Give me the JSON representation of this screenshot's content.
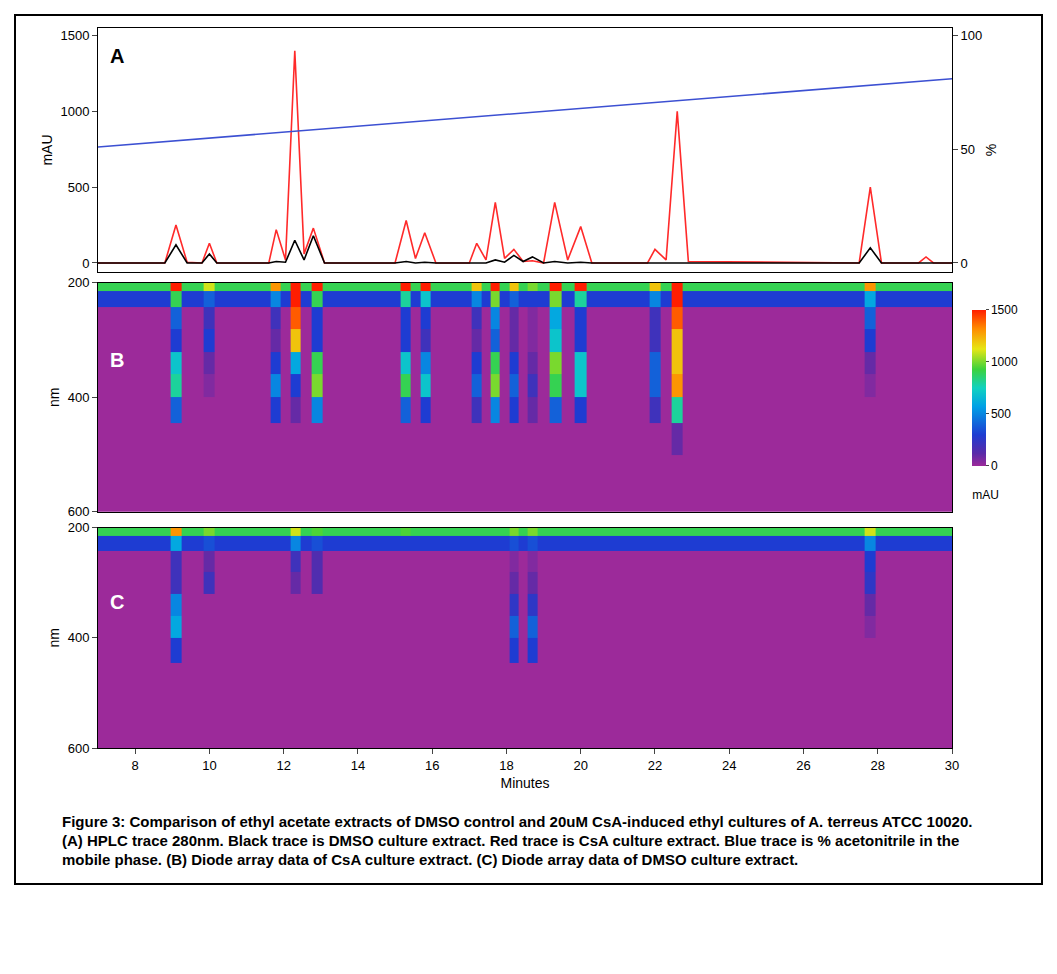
{
  "caption": "Figure 3: Comparison of ethyl acetate extracts of DMSO control and 20uM CsA-induced ethyl cultures of A. terreus ATCC 10020. (A) HPLC trace 280nm. Black trace is DMSO culture extract. Red trace is CsA culture extract. Blue trace is % acetonitrile in the mobile phase. (B) Diode array data of CsA culture extract. (C) Diode array data of DMSO culture extract.",
  "chart_data": [
    {
      "type": "line",
      "title": "A",
      "ylabel": "mAU",
      "y2label": "%",
      "xlim": [
        7,
        30
      ],
      "ylim": [
        -60,
        1550
      ],
      "yticks": [
        0,
        500,
        1000,
        1500
      ],
      "y2lim": [
        -4,
        103.3
      ],
      "y2ticks": [
        0,
        50,
        100
      ],
      "tick_labels": "y",
      "x": [
        7,
        8.8,
        9.1,
        9.4,
        9.8,
        10.0,
        10.2,
        11.6,
        11.8,
        12.05,
        12.3,
        12.55,
        12.8,
        13.1,
        15.0,
        15.3,
        15.55,
        15.8,
        16.1,
        17.0,
        17.2,
        17.45,
        17.7,
        17.95,
        18.2,
        18.45,
        18.7,
        19.0,
        19.3,
        19.65,
        20.0,
        20.3,
        21.8,
        22.0,
        22.3,
        22.6,
        22.9,
        27.5,
        27.8,
        28.1,
        29.1,
        29.3,
        29.5,
        30
      ],
      "series": [
        {
          "color": "#ff2a2a",
          "values": [
            0,
            0,
            250,
            5,
            0,
            130,
            0,
            0,
            220,
            20,
            1400,
            60,
            230,
            0,
            0,
            280,
            30,
            200,
            0,
            0,
            130,
            20,
            400,
            30,
            90,
            10,
            15,
            0,
            400,
            20,
            240,
            0,
            0,
            90,
            20,
            1000,
            10,
            0,
            500,
            0,
            0,
            40,
            0,
            0
          ]
        },
        {
          "color": "#000000",
          "values": [
            0,
            0,
            120,
            0,
            0,
            60,
            0,
            0,
            10,
            5,
            150,
            20,
            180,
            0,
            0,
            10,
            0,
            5,
            0,
            0,
            5,
            0,
            20,
            5,
            50,
            10,
            40,
            0,
            10,
            0,
            5,
            0,
            0,
            0,
            0,
            5,
            0,
            0,
            100,
            0,
            0,
            0,
            0,
            0
          ]
        },
        {
          "color": "#3c50d2",
          "axis": "y2",
          "x": [
            7,
            30
          ],
          "values": [
            51,
            81
          ]
        }
      ]
    },
    {
      "type": "heatmap",
      "title": "B",
      "ylabel": "nm",
      "zlabel": "mAU",
      "xlim": [
        7,
        30
      ],
      "ylim": [
        600,
        200
      ],
      "yticks": [
        200,
        400,
        600
      ],
      "tick_labels": "y",
      "zlim": [
        0,
        1500
      ],
      "zticks": [
        0,
        500,
        1000,
        1500
      ],
      "x": [
        7.0,
        8.8,
        9.1,
        9.4,
        9.7,
        10.0,
        10.3,
        11.5,
        11.8,
        12.05,
        12.3,
        12.6,
        12.9,
        13.2,
        15.0,
        15.3,
        15.55,
        15.8,
        16.1,
        16.9,
        17.2,
        17.45,
        17.7,
        17.95,
        18.2,
        18.45,
        18.7,
        19.0,
        19.3,
        19.65,
        20.0,
        20.3,
        21.7,
        22.0,
        22.3,
        22.6,
        22.9,
        27.5,
        27.8,
        28.1,
        30.0
      ],
      "y": [
        205,
        225,
        260,
        300,
        340,
        380,
        420,
        470,
        530,
        600
      ],
      "z": [
        [
          900,
          900,
          1500,
          900,
          900,
          1100,
          900,
          900,
          1300,
          900,
          1500,
          900,
          1500,
          900,
          900,
          1500,
          900,
          1500,
          900,
          900,
          1200,
          900,
          1500,
          900,
          1200,
          900,
          1000,
          900,
          1500,
          900,
          1500,
          900,
          900,
          1200,
          900,
          1500,
          900,
          900,
          1300,
          900,
          900
        ],
        [
          300,
          300,
          900,
          300,
          300,
          400,
          300,
          300,
          500,
          300,
          1500,
          300,
          900,
          300,
          300,
          800,
          300,
          700,
          300,
          300,
          500,
          300,
          1000,
          300,
          400,
          300,
          300,
          300,
          1000,
          300,
          800,
          300,
          300,
          500,
          300,
          1500,
          300,
          300,
          600,
          300,
          300
        ],
        [
          0,
          0,
          400,
          0,
          0,
          200,
          0,
          0,
          200,
          0,
          1400,
          0,
          300,
          0,
          0,
          300,
          0,
          300,
          0,
          0,
          200,
          0,
          500,
          0,
          100,
          0,
          50,
          0,
          600,
          0,
          300,
          0,
          0,
          200,
          0,
          1400,
          0,
          0,
          400,
          0,
          0
        ],
        [
          0,
          0,
          300,
          0,
          0,
          300,
          0,
          0,
          100,
          0,
          1200,
          0,
          300,
          0,
          0,
          300,
          0,
          200,
          0,
          0,
          100,
          0,
          400,
          0,
          100,
          0,
          50,
          0,
          700,
          0,
          300,
          0,
          0,
          200,
          0,
          1200,
          0,
          0,
          300,
          0,
          0
        ],
        [
          0,
          0,
          700,
          0,
          0,
          100,
          0,
          0,
          300,
          0,
          600,
          0,
          900,
          0,
          0,
          700,
          0,
          500,
          0,
          0,
          300,
          0,
          900,
          0,
          300,
          0,
          100,
          0,
          1000,
          0,
          700,
          0,
          0,
          400,
          0,
          1200,
          0,
          0,
          100,
          0,
          0
        ],
        [
          0,
          0,
          800,
          0,
          0,
          50,
          0,
          0,
          500,
          0,
          300,
          0,
          1000,
          0,
          0,
          900,
          0,
          700,
          0,
          0,
          400,
          0,
          1000,
          0,
          400,
          0,
          200,
          0,
          900,
          0,
          700,
          0,
          0,
          400,
          0,
          1300,
          0,
          0,
          50,
          0,
          0
        ],
        [
          0,
          0,
          400,
          0,
          0,
          0,
          0,
          0,
          300,
          0,
          100,
          0,
          500,
          0,
          0,
          400,
          0,
          300,
          0,
          0,
          200,
          0,
          500,
          0,
          300,
          0,
          100,
          0,
          400,
          0,
          300,
          0,
          0,
          200,
          0,
          800,
          0,
          0,
          0,
          0,
          0
        ],
        [
          0,
          0,
          0,
          0,
          0,
          0,
          0,
          0,
          0,
          0,
          0,
          0,
          0,
          0,
          0,
          0,
          0,
          0,
          0,
          0,
          0,
          0,
          0,
          0,
          0,
          0,
          0,
          0,
          0,
          0,
          0,
          0,
          0,
          0,
          0,
          100,
          0,
          0,
          0,
          0,
          0
        ],
        [
          0,
          0,
          0,
          0,
          0,
          0,
          0,
          0,
          0,
          0,
          0,
          0,
          0,
          0,
          0,
          0,
          0,
          0,
          0,
          0,
          0,
          0,
          0,
          0,
          0,
          0,
          0,
          0,
          0,
          0,
          0,
          0,
          0,
          0,
          0,
          0,
          0,
          0,
          0,
          0,
          0
        ],
        [
          0,
          0,
          0,
          0,
          0,
          0,
          0,
          0,
          0,
          0,
          0,
          0,
          0,
          0,
          0,
          0,
          0,
          0,
          0,
          0,
          0,
          0,
          0,
          0,
          0,
          0,
          0,
          0,
          0,
          0,
          0,
          0,
          0,
          0,
          0,
          0,
          0,
          0,
          0,
          0,
          0
        ]
      ]
    },
    {
      "type": "heatmap",
      "title": "C",
      "ylabel": "nm",
      "xlabel": "Minutes",
      "xlim": [
        7,
        30
      ],
      "xticks": [
        8,
        10,
        12,
        14,
        16,
        18,
        20,
        22,
        24,
        26,
        28,
        30
      ],
      "ylim": [
        600,
        200
      ],
      "yticks": [
        200,
        400,
        600
      ],
      "tick_labels": true,
      "zlim": [
        0,
        1500
      ],
      "x": [
        7.0,
        8.8,
        9.1,
        9.4,
        9.7,
        10.0,
        10.3,
        11.5,
        11.8,
        12.05,
        12.3,
        12.6,
        12.9,
        13.2,
        15.0,
        15.3,
        15.55,
        15.8,
        16.1,
        16.9,
        17.2,
        17.45,
        17.7,
        17.95,
        18.2,
        18.45,
        18.7,
        19.0,
        19.3,
        19.65,
        20.0,
        20.3,
        21.7,
        22.0,
        22.3,
        22.6,
        22.9,
        27.5,
        27.8,
        28.1,
        30.0
      ],
      "y": [
        205,
        225,
        260,
        300,
        340,
        380,
        420,
        470,
        530,
        600
      ],
      "z": [
        [
          900,
          900,
          1300,
          900,
          900,
          1000,
          900,
          900,
          900,
          900,
          1100,
          900,
          950,
          900,
          900,
          950,
          900,
          900,
          900,
          900,
          900,
          900,
          900,
          900,
          1000,
          900,
          1000,
          900,
          900,
          900,
          900,
          900,
          900,
          900,
          900,
          900,
          900,
          900,
          1100,
          900,
          900
        ],
        [
          300,
          300,
          600,
          300,
          300,
          350,
          300,
          300,
          300,
          300,
          500,
          300,
          350,
          300,
          300,
          300,
          300,
          300,
          300,
          300,
          300,
          300,
          300,
          300,
          350,
          300,
          350,
          300,
          300,
          300,
          300,
          300,
          300,
          300,
          300,
          300,
          300,
          300,
          500,
          300,
          300
        ],
        [
          0,
          0,
          200,
          0,
          0,
          100,
          0,
          0,
          0,
          0,
          200,
          0,
          150,
          0,
          0,
          0,
          0,
          0,
          0,
          0,
          0,
          0,
          0,
          0,
          50,
          0,
          50,
          0,
          0,
          0,
          0,
          0,
          0,
          0,
          0,
          0,
          0,
          0,
          300,
          0,
          0
        ],
        [
          0,
          0,
          200,
          0,
          0,
          200,
          0,
          0,
          0,
          0,
          100,
          0,
          150,
          0,
          0,
          0,
          0,
          0,
          0,
          0,
          0,
          0,
          0,
          0,
          100,
          0,
          100,
          0,
          0,
          0,
          0,
          0,
          0,
          0,
          0,
          0,
          0,
          0,
          250,
          0,
          0
        ],
        [
          0,
          0,
          500,
          0,
          0,
          0,
          0,
          0,
          0,
          0,
          0,
          0,
          0,
          0,
          0,
          0,
          0,
          0,
          0,
          0,
          0,
          0,
          0,
          0,
          250,
          0,
          250,
          0,
          0,
          0,
          0,
          0,
          0,
          0,
          0,
          0,
          0,
          0,
          100,
          0,
          0
        ],
        [
          0,
          0,
          600,
          0,
          0,
          0,
          0,
          0,
          0,
          0,
          0,
          0,
          0,
          0,
          0,
          0,
          0,
          0,
          0,
          0,
          0,
          0,
          0,
          0,
          400,
          0,
          400,
          0,
          0,
          0,
          0,
          0,
          0,
          0,
          0,
          0,
          0,
          0,
          50,
          0,
          0
        ],
        [
          0,
          0,
          300,
          0,
          0,
          0,
          0,
          0,
          0,
          0,
          0,
          0,
          0,
          0,
          0,
          0,
          0,
          0,
          0,
          0,
          0,
          0,
          0,
          0,
          300,
          0,
          300,
          0,
          0,
          0,
          0,
          0,
          0,
          0,
          0,
          0,
          0,
          0,
          0,
          0,
          0
        ],
        [
          0,
          0,
          0,
          0,
          0,
          0,
          0,
          0,
          0,
          0,
          0,
          0,
          0,
          0,
          0,
          0,
          0,
          0,
          0,
          0,
          0,
          0,
          0,
          0,
          0,
          0,
          0,
          0,
          0,
          0,
          0,
          0,
          0,
          0,
          0,
          0,
          0,
          0,
          0,
          0,
          0
        ],
        [
          0,
          0,
          0,
          0,
          0,
          0,
          0,
          0,
          0,
          0,
          0,
          0,
          0,
          0,
          0,
          0,
          0,
          0,
          0,
          0,
          0,
          0,
          0,
          0,
          0,
          0,
          0,
          0,
          0,
          0,
          0,
          0,
          0,
          0,
          0,
          0,
          0,
          0,
          0,
          0,
          0
        ],
        [
          0,
          0,
          0,
          0,
          0,
          0,
          0,
          0,
          0,
          0,
          0,
          0,
          0,
          0,
          0,
          0,
          0,
          0,
          0,
          0,
          0,
          0,
          0,
          0,
          0,
          0,
          0,
          0,
          0,
          0,
          0,
          0,
          0,
          0,
          0,
          0,
          0,
          0,
          0,
          0,
          0
        ]
      ]
    }
  ]
}
